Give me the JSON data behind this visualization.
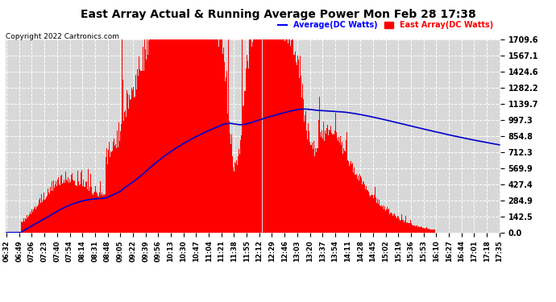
{
  "title": "East Array Actual & Running Average Power Mon Feb 28 17:38",
  "copyright": "Copyright 2022 Cartronics.com",
  "legend_avg": "Average(DC Watts)",
  "legend_east": "East Array(DC Watts)",
  "yticks": [
    0.0,
    142.5,
    284.9,
    427.4,
    569.9,
    712.3,
    854.8,
    997.3,
    1139.7,
    1282.2,
    1424.6,
    1567.1,
    1709.6
  ],
  "ymax": 1709.6,
  "ymin": 0.0,
  "bg_color": "#ffffff",
  "plot_bg_color": "#d8d8d8",
  "grid_color": "#ffffff",
  "bar_color": "#ff0000",
  "avg_color": "#0000cc",
  "title_color": "#000000",
  "copyright_color": "#000000",
  "avg_legend_color": "#0000ff",
  "east_legend_color": "#ff0000",
  "x_labels": [
    "06:32",
    "06:49",
    "07:06",
    "07:23",
    "07:40",
    "07:54",
    "08:14",
    "08:31",
    "08:48",
    "09:05",
    "09:22",
    "09:39",
    "09:56",
    "10:13",
    "10:30",
    "10:47",
    "11:04",
    "11:21",
    "11:38",
    "11:55",
    "12:12",
    "12:29",
    "12:46",
    "13:03",
    "13:20",
    "13:37",
    "13:54",
    "14:11",
    "14:28",
    "14:45",
    "15:02",
    "15:19",
    "15:36",
    "15:53",
    "16:10",
    "16:27",
    "16:44",
    "17:01",
    "17:18",
    "17:35"
  ]
}
